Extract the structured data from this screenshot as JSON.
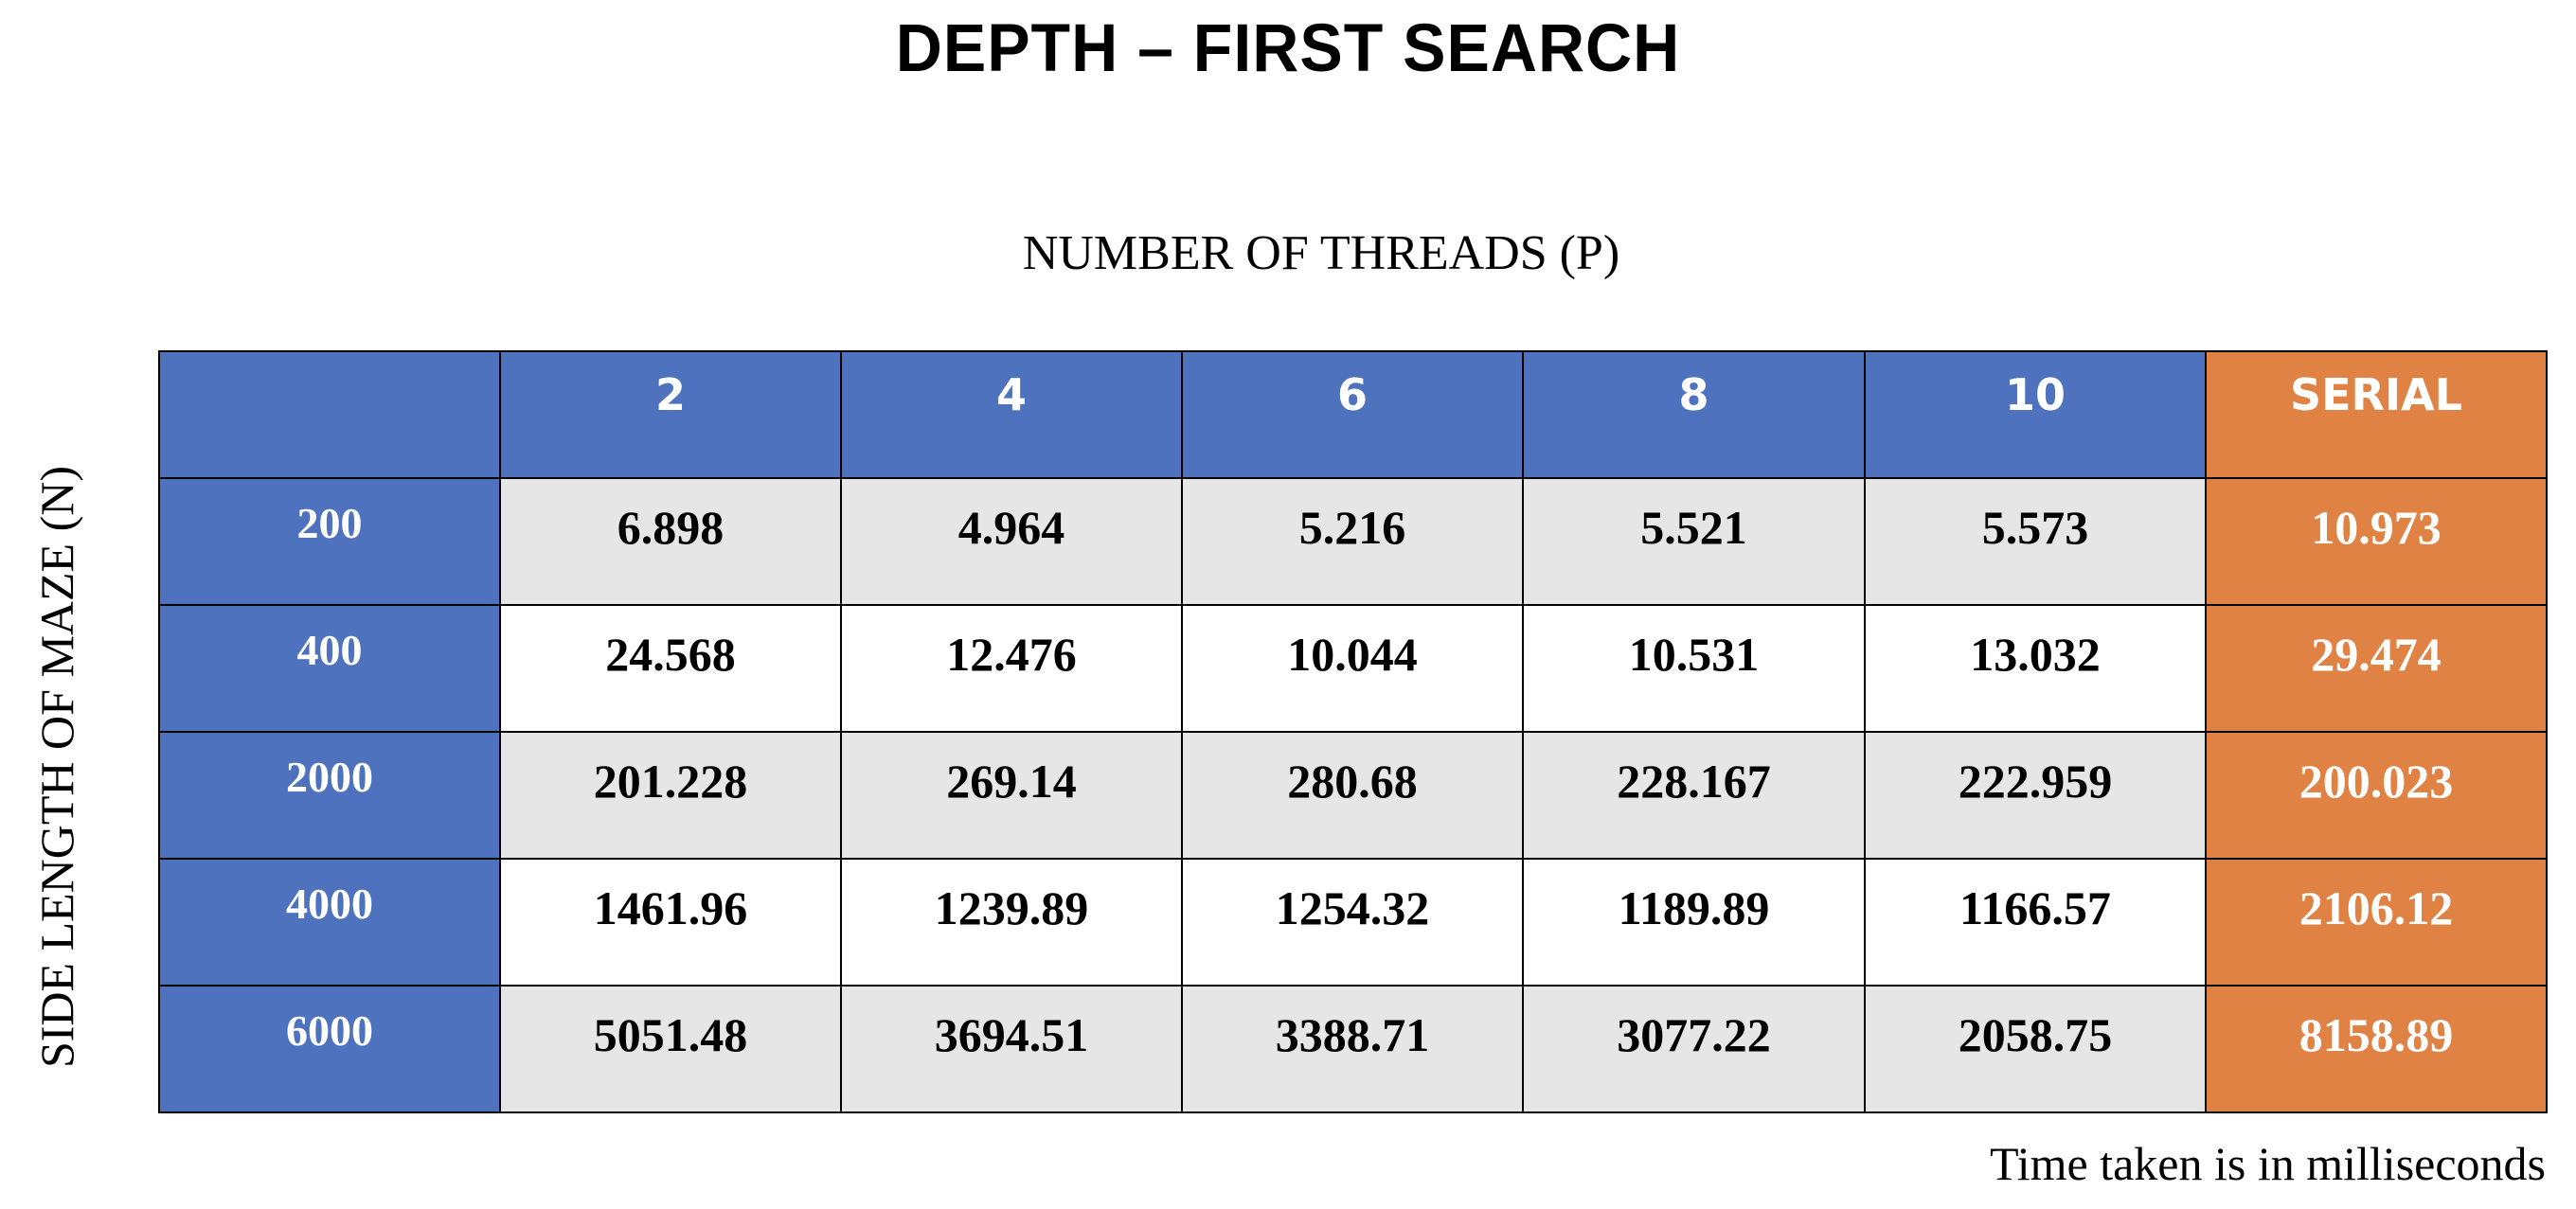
{
  "chart_data": {
    "type": "table",
    "title": "DEPTH – FIRST SEARCH",
    "column_axis_label": "NUMBER OF THREADS (P)",
    "row_axis_label": "SIDE LENGTH OF MAZE (N)",
    "columns": [
      "2",
      "4",
      "6",
      "8",
      "10",
      "SERIAL"
    ],
    "rows": [
      {
        "label": "200",
        "values": [
          "6.898",
          "4.964",
          "5.216",
          "5.521",
          "5.573",
          "10.973"
        ]
      },
      {
        "label": "400",
        "values": [
          "24.568",
          "12.476",
          "10.044",
          "10.531",
          "13.032",
          "29.474"
        ]
      },
      {
        "label": "2000",
        "values": [
          "201.228",
          "269.14",
          "280.68",
          "228.167",
          "222.959",
          "200.023"
        ]
      },
      {
        "label": "4000",
        "values": [
          "1461.96",
          "1239.89",
          "1254.32",
          "1189.89",
          "1166.57",
          "2106.12"
        ]
      },
      {
        "label": "6000",
        "values": [
          "5051.48",
          "3694.51",
          "3388.71",
          "3077.22",
          "2058.75",
          "8158.89"
        ]
      }
    ],
    "footnote": "Time taken is in milliseconds",
    "colors": {
      "header": "#4f72be",
      "serial": "#e08244",
      "shaded_row": "#e6e6e6",
      "plain_row": "#ffffff"
    }
  }
}
